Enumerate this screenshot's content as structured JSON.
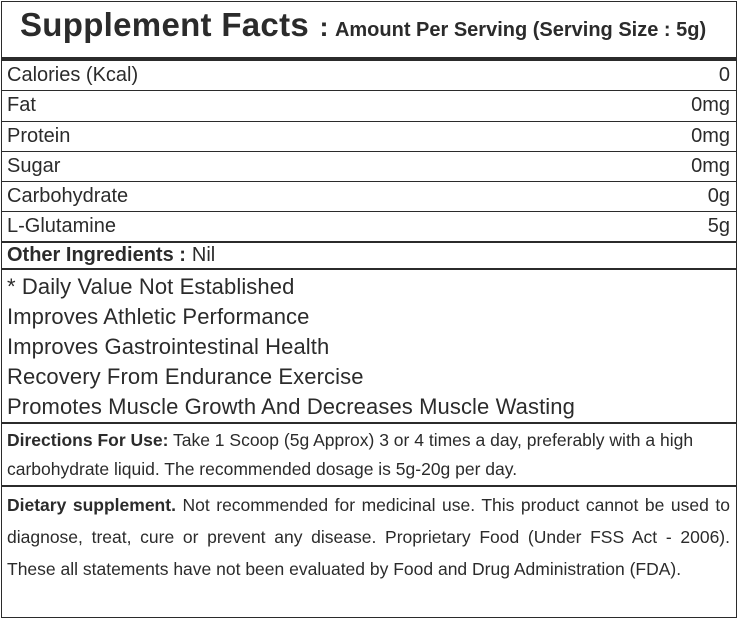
{
  "header": {
    "title": "Supplement Facts",
    "colon": ":",
    "serving": "Amount Per Serving (Serving Size : 5g)"
  },
  "nutrients": [
    {
      "name": "Calories (Kcal)",
      "value": "0"
    },
    {
      "name": "Fat",
      "value": "0mg"
    },
    {
      "name": "Protein",
      "value": "0mg"
    },
    {
      "name": "Sugar",
      "value": "0mg"
    },
    {
      "name": "Carbohydrate",
      "value": "0g"
    },
    {
      "name": "L-Glutamine",
      "value": "5g"
    }
  ],
  "other_ingredients": {
    "label": "Other Ingredients :",
    "value": "Nil"
  },
  "claims": [
    "* Daily Value Not Established",
    "Improves Athletic Performance",
    "Improves Gastrointestinal Health",
    "Recovery From Endurance Exercise",
    "Promotes Muscle Growth And Decreases Muscle Wasting"
  ],
  "directions": {
    "label": "Directions For Use:",
    "text": "Take 1 Scoop (5g Approx) 3 or 4 times a day, preferably with a high carbohydrate liquid. The recommended dosage is 5g-20g per day."
  },
  "dietary": {
    "label": "Dietary supplement.",
    "text": "Not recommended for medicinal use. This product cannot be used to diagnose, treat, cure or prevent any disease. Proprietary Food (Under FSS Act - 2006). These all statements have not been evaluated by Food and Drug Administration (FDA)."
  }
}
